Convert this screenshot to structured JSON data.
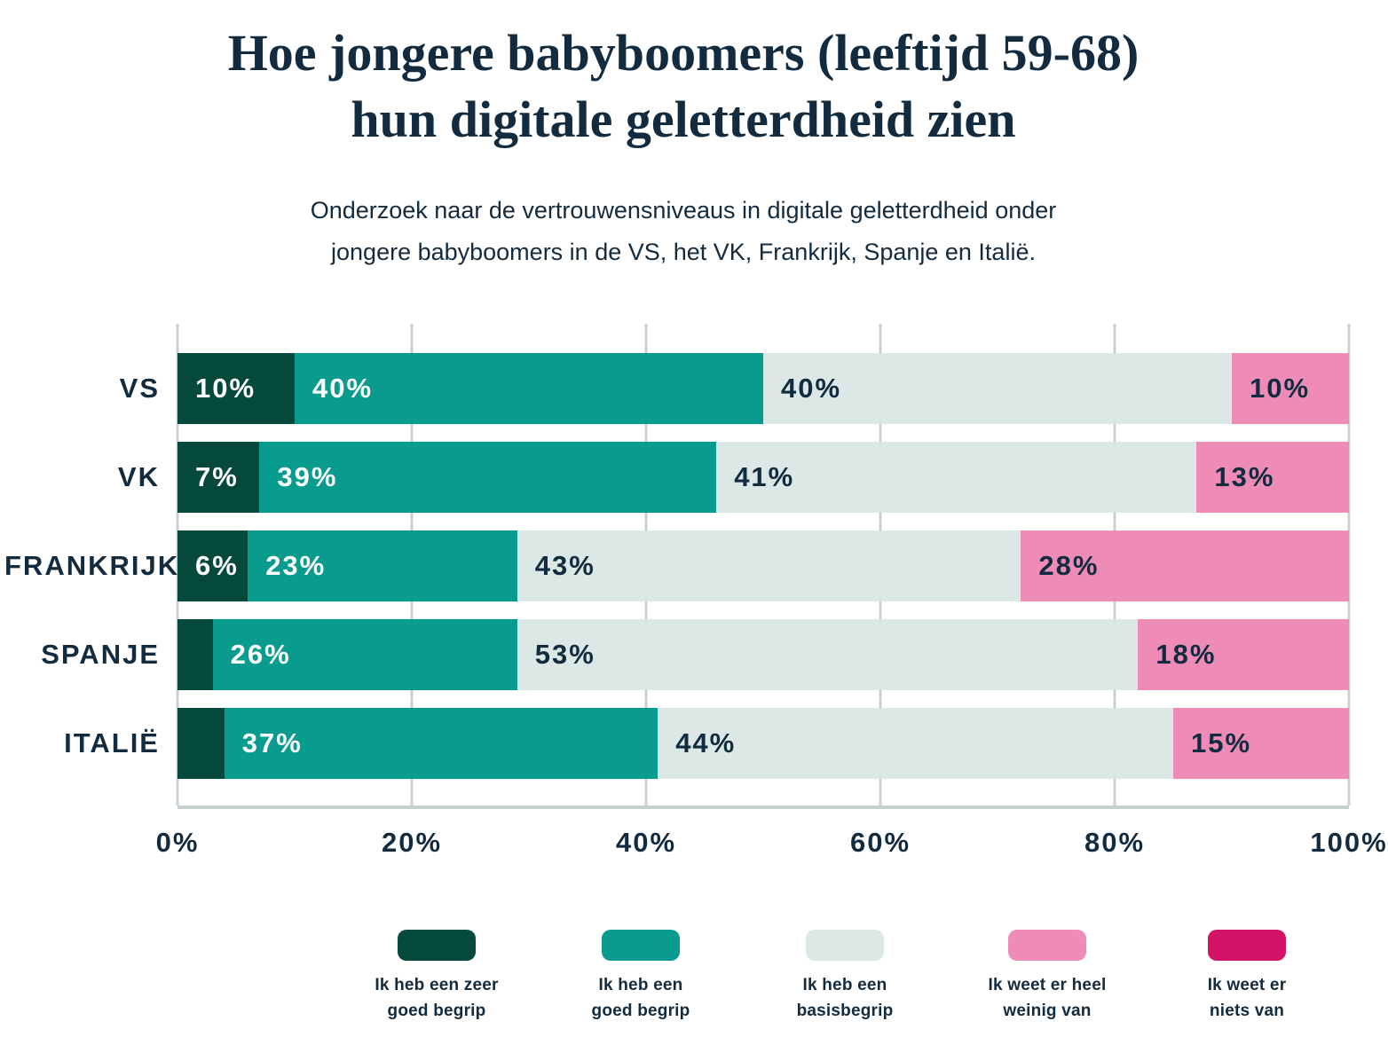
{
  "title": {
    "line1": "Hoe jongere babyboomers (leeftijd 59-68)",
    "line2": "hun digitale geletterdheid zien"
  },
  "subtitle": {
    "line1": "Onderzoek naar de vertrouwensniveaus in digitale geletterdheid onder",
    "line2": "jongere babyboomers in de VS, het VK, Frankrijk, Spanje en Italië."
  },
  "colors": {
    "dark_green": "#05493D",
    "teal": "#099C8E",
    "light_mint": "#DBE8E5",
    "pink": "#EE8CB7",
    "magenta": "#D31368",
    "text_navy": "#132B3F",
    "white": "#FFFFFF",
    "gridline": "#C8D1CE",
    "background": "#FFFFFF"
  },
  "chart_data": {
    "type": "bar",
    "orientation": "horizontal",
    "stacked": true,
    "grid": true,
    "legend_position": "bottom",
    "xlim": [
      0,
      100
    ],
    "x_ticks": [
      "0%",
      "20%",
      "40%",
      "60%",
      "80%",
      "100%"
    ],
    "categories": [
      "VS",
      "VK",
      "FRANKRIJK",
      "SPANJE",
      "ITALIË"
    ],
    "series": [
      {
        "name": "Ik heb een zeer goed begrip",
        "color_key": "dark_green",
        "label_color": "#FFFFFF",
        "values": [
          10,
          7,
          6,
          3,
          4
        ],
        "labels": [
          "10%",
          "7%",
          "6%",
          "",
          ""
        ]
      },
      {
        "name": "Ik heb een goed begrip",
        "color_key": "teal",
        "label_color": "#FFFFFF",
        "values": [
          40,
          39,
          23,
          26,
          37
        ],
        "labels": [
          "40%",
          "39%",
          "23%",
          "26%",
          "37%"
        ]
      },
      {
        "name": "Ik heb een basisbegrip",
        "color_key": "light_mint",
        "label_color": "#132B3F",
        "values": [
          40,
          41,
          43,
          53,
          44
        ],
        "labels": [
          "40%",
          "41%",
          "43%",
          "53%",
          "44%"
        ]
      },
      {
        "name": "Ik weet er heel weinig van",
        "color_key": "pink",
        "label_color": "#132B3F",
        "values": [
          10,
          13,
          28,
          18,
          15
        ],
        "labels": [
          "10%",
          "13%",
          "28%",
          "18%",
          "15%"
        ]
      },
      {
        "name": "Ik weet er niets van",
        "color_key": "magenta",
        "label_color": "#FFFFFF",
        "values": [
          0,
          0,
          0,
          0,
          0
        ],
        "labels": [
          "",
          "",
          "",
          "",
          ""
        ]
      }
    ]
  },
  "legend": {
    "items": [
      {
        "color_key": "dark_green",
        "line1": "Ik heb een zeer",
        "line2": "goed begrip"
      },
      {
        "color_key": "teal",
        "line1": "Ik heb een",
        "line2": "goed begrip"
      },
      {
        "color_key": "light_mint",
        "line1": "Ik heb een",
        "line2": "basisbegrip"
      },
      {
        "color_key": "pink",
        "line1": "Ik weet er heel",
        "line2": "weinig van"
      },
      {
        "color_key": "magenta",
        "line1": "Ik weet er",
        "line2": "niets van"
      }
    ]
  }
}
